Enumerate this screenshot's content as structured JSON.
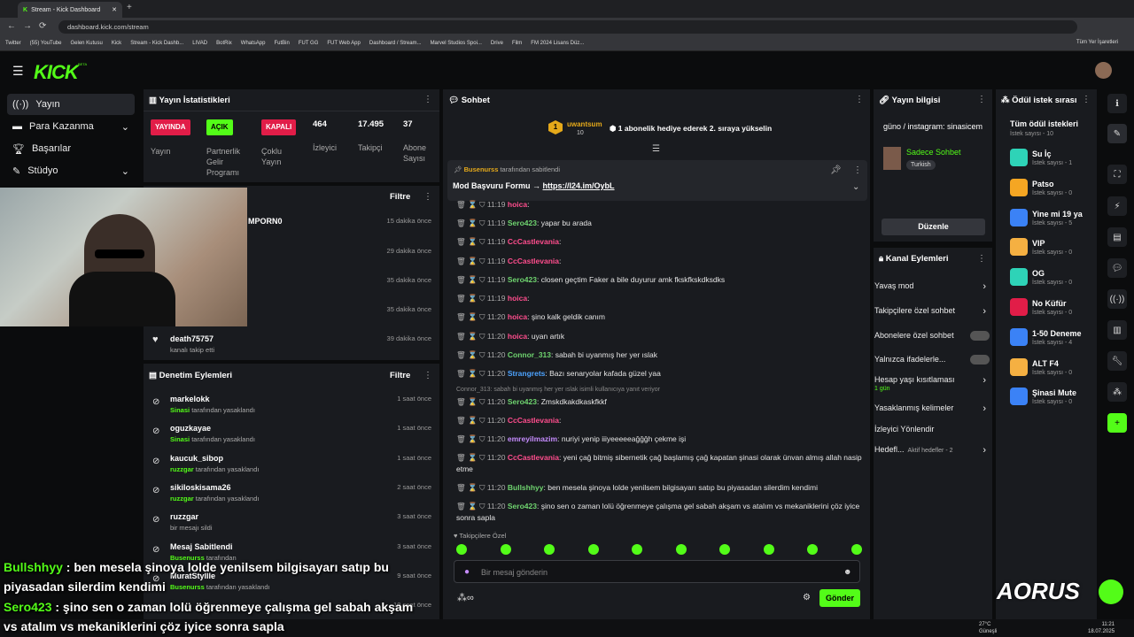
{
  "browser": {
    "tab_title": "Stream - Kick Dashboard",
    "url": "dashboard.kick.com/stream",
    "bookmarks": [
      "Twitter",
      "(55) YouTube",
      "Gelen Kutusu",
      "Kick",
      "Stream - Kick Dashb...",
      "LIVAD",
      "BotRix",
      "WhatsApp",
      "FutBin",
      "FUT GG",
      "FUT Web App",
      "Dashboard / Stream...",
      "Marvel Studios Spoi...",
      "Drive",
      "Film",
      "FM 2024 Lisans Düz..."
    ],
    "all_bookmarks": "Tüm Yer İşaretleri"
  },
  "app": {
    "logo": "KICK",
    "beta": "BETA"
  },
  "sidebar": {
    "items": [
      {
        "label": "Yayın"
      },
      {
        "label": "Para Kazanma"
      },
      {
        "label": "Başarılar"
      },
      {
        "label": "Stüdyo"
      }
    ]
  },
  "stats": {
    "title": "Yayın İstatistikleri",
    "badges": [
      {
        "badge": "YAYINDA",
        "label": "Yayın"
      },
      {
        "badge": "AÇIK",
        "label": "Partnerlik Gelir Programı"
      },
      {
        "badge": "KAPALI",
        "label": "Çoklu Yayın"
      }
    ],
    "numbers": [
      {
        "value": "464",
        "label": "İzleyici"
      },
      {
        "value": "17.495",
        "label": "Takipçi"
      },
      {
        "value": "37",
        "label": "Abone Sayısı"
      }
    ]
  },
  "activity": {
    "filter": "Filtre",
    "items": [
      {
        "name": "MPORN0",
        "sub": "",
        "time": "15 dakika önce"
      },
      {
        "name": "",
        "sub": "",
        "time": "29 dakika önce"
      },
      {
        "name": "",
        "sub": "",
        "time": "35 dakika önce"
      },
      {
        "name": "",
        "sub": "",
        "time": "35 dakika önce"
      },
      {
        "name": "death75757",
        "sub": "kanalı takip etti",
        "time": "39 dakika önce"
      }
    ]
  },
  "moderation": {
    "title": "Denetim Eylemleri",
    "filter": "Filtre",
    "items": [
      {
        "name": "markelokk",
        "by": "Sinasi",
        "action": "tarafından yasaklandı",
        "time": "1 saat önce"
      },
      {
        "name": "oguzkayae",
        "by": "Sinasi",
        "action": "tarafından yasaklandı",
        "time": "1 saat önce"
      },
      {
        "name": "kaucuk_sibop",
        "by": "ruzzgar",
        "action": "tarafından yasaklandı",
        "time": "1 saat önce"
      },
      {
        "name": "sikiloskisama26",
        "by": "ruzzgar",
        "action": "tarafından yasaklandı",
        "time": "2 saat önce"
      },
      {
        "name": "ruzzgar",
        "by": "",
        "action": "bir mesajı sildi",
        "time": "3 saat önce"
      },
      {
        "name": "Mesaj Sabitlendi",
        "by": "Busenurss",
        "action": "tarafından",
        "time": "3 saat önce"
      },
      {
        "name": "MuratStyllle",
        "by": "Busenurss",
        "action": "tarafından yasaklandı",
        "time": "9 saat önce"
      },
      {
        "name": "",
        "by": "",
        "action": "",
        "time": "10 saat önce"
      }
    ]
  },
  "chat": {
    "title": "Sohbet",
    "gifter": "uwantsum",
    "gift_count": "10",
    "gift_text": "1 abonelik hediye ederek 2. sıraya yükselin",
    "pinned": {
      "by": "Busenurss",
      "by_suffix": "tarafından sabitlendi",
      "text": "Mod Başvuru Formu → ",
      "link": "https://l24.im/OybL"
    },
    "messages": [
      {
        "time": "11:19",
        "user": "hoica",
        "color": "#ff4d8d",
        "text": ""
      },
      {
        "time": "11:19",
        "user": "Sero423",
        "color": "#6fd46f",
        "text": "yapar bu arada"
      },
      {
        "time": "11:19",
        "user": "CcCastlevania",
        "color": "#ff4d8d",
        "text": ""
      },
      {
        "time": "11:19",
        "user": "CcCastlevania",
        "color": "#ff4d8d",
        "text": ""
      },
      {
        "time": "11:19",
        "user": "Sero423",
        "color": "#6fd46f",
        "text": "closen geçtim Faker a bile duyurur amk fkskfkskdksdks"
      },
      {
        "time": "11:19",
        "user": "hoica",
        "color": "#ff4d8d",
        "text": ""
      },
      {
        "time": "11:20",
        "user": "hoica",
        "color": "#ff4d8d",
        "text": "şino kalk geldik canım"
      },
      {
        "time": "11:20",
        "user": "hoica",
        "color": "#ff4d8d",
        "text": "uyan artık"
      },
      {
        "time": "11:20",
        "user": "Connor_313",
        "color": "#6fd46f",
        "text": "sabah bi uyanmış her yer ıslak"
      },
      {
        "time": "11:20",
        "user": "Strangrets",
        "color": "#4da3ff",
        "text": "Bazı senaryolar kafada güzel yaa"
      }
    ],
    "reply": "Connor_313: sabah bi uyanmış her yer ıslak isimli kullanıcıya yanıt veriyor",
    "messages2": [
      {
        "time": "11:20",
        "user": "Sero423",
        "color": "#6fd46f",
        "text": "Zmskdkakdkaskfkkf"
      },
      {
        "time": "11:20",
        "user": "CcCastlevania",
        "color": "#ff4d8d",
        "text": ""
      },
      {
        "time": "11:20",
        "user": "emreyilmazim",
        "color": "#c68cff",
        "text": "nuriyi yenip iiiyeeeeeağğğh çekme işi"
      },
      {
        "time": "11:20",
        "user": "CcCastlevania",
        "color": "#ff4d8d",
        "text": "yeni çağ bitmiş sibernetik çağ başlamış çağ kapatan şinasi olarak ünvan almış allah nasip etme"
      },
      {
        "time": "11:20",
        "user": "Bullshhyy",
        "color": "#6fd46f",
        "text": "ben mesela şinoya lolde yenilsem bilgisayarı satıp bu piyasadan silerdim kendimi"
      },
      {
        "time": "11:20",
        "user": "Sero423",
        "color": "#6fd46f",
        "text": "şino sen o zaman lolü öğrenmeye çalışma gel sabah akşam vs atalım vs mekaniklerini çöz iyice sonra sapla"
      }
    ],
    "followers_only": "Takipçilere Özel",
    "placeholder": "Bir mesaj gönderin",
    "send": "Gönder"
  },
  "stream_info": {
    "title": "Yayın bilgisi",
    "name": "güno / instagram: sinasicem",
    "chat_mode": "Sadece Sohbet",
    "language": "Turkish",
    "edit": "Düzenle"
  },
  "channel_actions": {
    "title": "Kanal Eylemleri",
    "items": [
      {
        "label": "Yavaş mod"
      },
      {
        "label": "Takipçilere özel sohbet"
      },
      {
        "label": "Abonelere özel sohbet"
      },
      {
        "label": "Yalnızca ifadelerle..."
      },
      {
        "label": "Hesap yaşı kısıtlaması",
        "sub": "1 gün"
      },
      {
        "label": "Yasaklanmış kelimeler"
      },
      {
        "label": "İzleyici Yönlendir"
      },
      {
        "label": "Hedefl...",
        "sub": "Aktif hedefler - 2"
      }
    ]
  },
  "rewards": {
    "title": "Ödül istek sırası",
    "all": "Tüm ödül istekleri",
    "all_count": "İstek sayısı - 10",
    "items": [
      {
        "name": "Su İç",
        "count": "İstek sayısı - 1",
        "color": "#2ed3b7"
      },
      {
        "name": "Patso",
        "count": "İstek sayısı - 0",
        "color": "#f5a623"
      },
      {
        "name": "Yine mi 19 ya",
        "count": "İstek sayısı - 5",
        "color": "#3b82f6"
      },
      {
        "name": "VIP",
        "count": "İstek sayısı - 0",
        "color": "#f5b042"
      },
      {
        "name": "OG",
        "count": "İstek sayısı - 0",
        "color": "#2ed3b7"
      },
      {
        "name": "No Küfür",
        "count": "İstek sayısı - 0",
        "color": "#e11d48"
      },
      {
        "name": "1-50 Deneme",
        "count": "İstek sayısı - 4",
        "color": "#3b82f6"
      },
      {
        "name": "ALT F4",
        "count": "İstek sayısı - 0",
        "color": "#f5b042"
      },
      {
        "name": "Şinasi Mute",
        "count": "İstek sayısı - 0",
        "color": "#3b82f6"
      }
    ]
  },
  "overlay": {
    "captions": [
      {
        "user": "Bullshhyy",
        "text": " : ben mesela şinoya lolde yenilsem bilgisayarı satıp bu"
      },
      {
        "user": "",
        "text": "piyasadan silerdim kendimi"
      },
      {
        "user": "Sero423",
        "text": " : şino sen o zaman lolü öğrenmeye çalışma gel sabah akşam"
      },
      {
        "user": "",
        "text": "vs atalım vs mekaniklerini çöz iyice sonra sapla"
      }
    ],
    "brand": "AORUS"
  },
  "taskbar": {
    "temp": "27°C",
    "weather": "Güneşli",
    "time": "11:21",
    "date": "18.07.2025"
  }
}
